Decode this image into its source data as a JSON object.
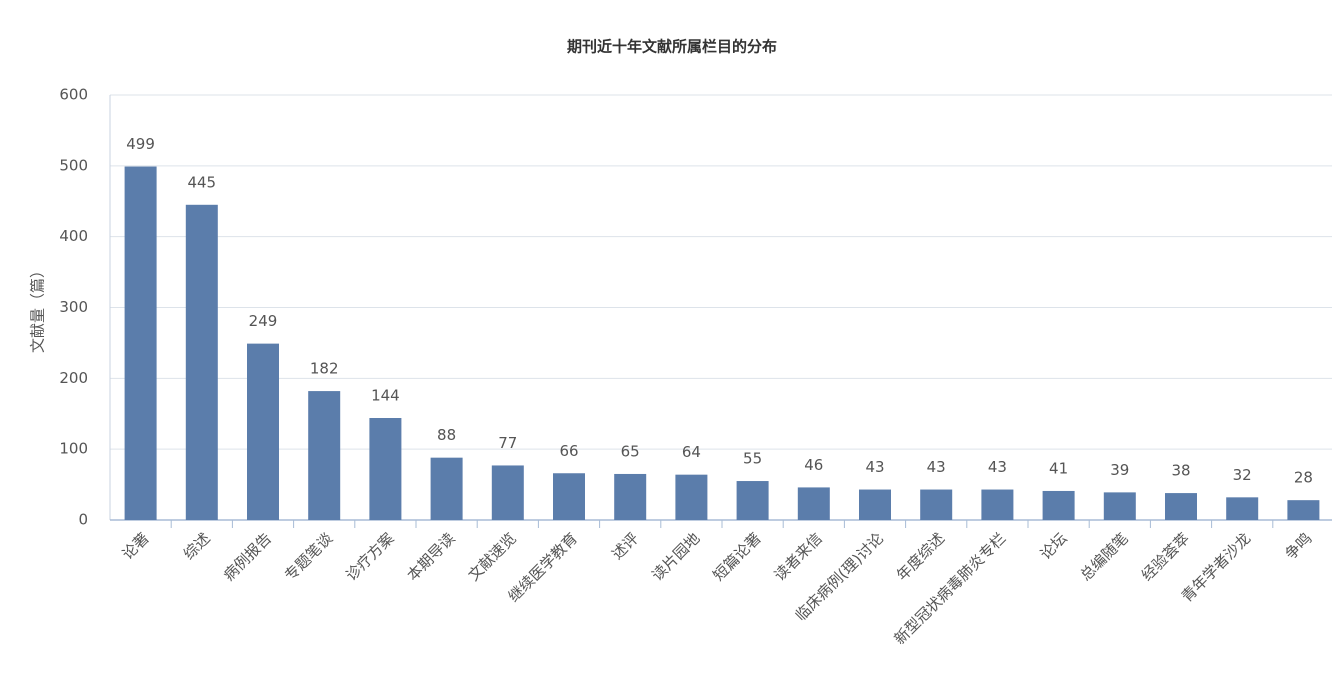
{
  "chart_data": {
    "type": "bar",
    "title": "期刊近十年文献所属栏目的分布",
    "y_label": "文献量（篇）",
    "categories": [
      "论著",
      "综述",
      "病例报告",
      "专题笔谈",
      "诊疗方案",
      "本期导读",
      "文献速览",
      "继续医学教育",
      "述评",
      "读片园地",
      "短篇论著",
      "读者来信",
      "临床病例(理)讨论",
      "年度综述",
      "新型冠状病毒肺炎专栏",
      "论坛",
      "总编随笔",
      "经验荟萃",
      "青年学者沙龙",
      "争鸣"
    ],
    "values": [
      499,
      445,
      249,
      182,
      144,
      88,
      77,
      66,
      65,
      64,
      55,
      46,
      43,
      43,
      43,
      41,
      39,
      38,
      32,
      28
    ],
    "color": "#5b7dab",
    "ylim": [
      0,
      600
    ],
    "yticks": [
      0,
      100,
      200,
      300,
      400,
      500,
      600
    ],
    "grid": true
  }
}
